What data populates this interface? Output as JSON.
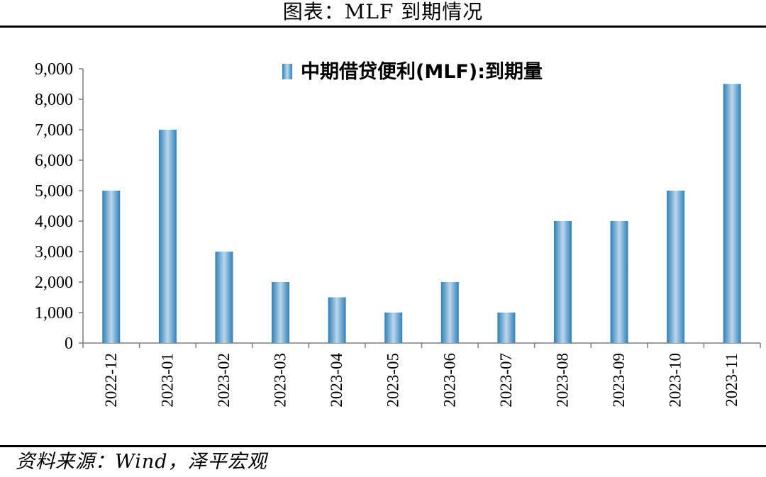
{
  "title": "图表：MLF 到期情况",
  "source": "资料来源：Wind，泽平宏观",
  "chart_data": {
    "type": "bar",
    "categories": [
      "2022-12",
      "2023-01",
      "2023-02",
      "2023-03",
      "2023-04",
      "2023-05",
      "2023-06",
      "2023-07",
      "2023-08",
      "2023-09",
      "2023-10",
      "2023-11"
    ],
    "series": [
      {
        "name": "中期借贷便利(MLF):到期量",
        "values": [
          5000,
          7000,
          3000,
          2000,
          1500,
          1000,
          2000,
          1000,
          4000,
          4000,
          5000,
          8500
        ]
      }
    ],
    "ylim": [
      0,
      9000
    ],
    "yticks": [
      "0",
      "1,000",
      "2,000",
      "3,000",
      "4,000",
      "5,000",
      "6,000",
      "7,000",
      "8,000",
      "9,000"
    ],
    "xlabel": "",
    "ylabel": "",
    "grid": false,
    "legend_position": "top"
  },
  "colors": {
    "bar_dark": "#2f7fb8",
    "bar_light": "#bcd7ec",
    "axis": "#7f7f7f"
  }
}
